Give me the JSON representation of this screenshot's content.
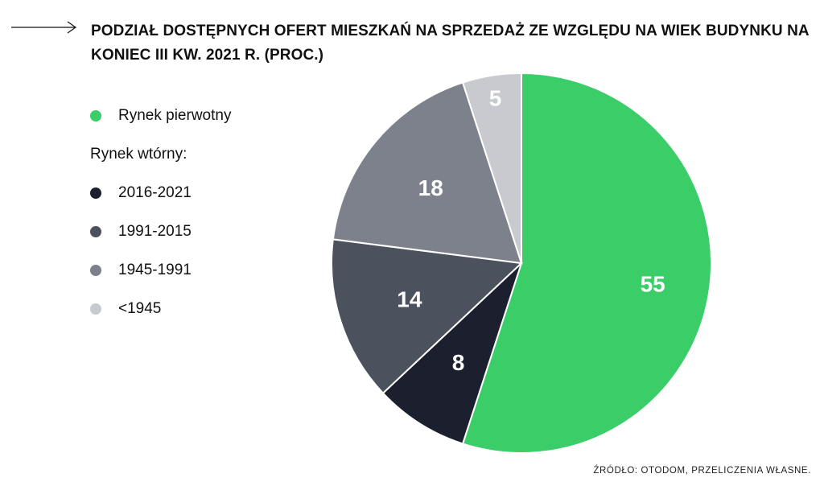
{
  "title": "PODZIAŁ DOSTĘPNYCH OFERT MIESZKAŃ NA SPRZEDAŻ ZE WZGLĘDU NA WIEK BUDYNKU NA KONIEC III KW. 2021 R. (PROC.)",
  "legend": {
    "primary_label": "Rynek pierwotny",
    "secondary_heading": "Rynek wtórny:",
    "secondary_items": [
      "2016-2021",
      "1991-2015",
      "1945-1991",
      "<1945"
    ]
  },
  "source": "ŹRÓDŁO: OTODOM, PRZELICZENIA WŁASNE.",
  "colors": {
    "primary": "#3acd68",
    "s2016": "#1b1f2e",
    "s1991": "#4c515e",
    "s1945": "#7c818b",
    "s_old": "#c8cacf"
  },
  "chart_data": {
    "type": "pie",
    "title": "PODZIAŁ DOSTĘPNYCH OFERT MIESZKAŃ NA SPRZEDAŻ ZE WZGLĘDU NA WIEK BUDYNKU NA KONIEC III KW. 2021 R. (PROC.)",
    "start": "12 o'clock, clockwise",
    "slices": [
      {
        "label": "Rynek pierwotny",
        "value": 55,
        "display": "55",
        "color": "#3acd68"
      },
      {
        "label": "2016-2021",
        "value": 8,
        "display": "8",
        "color": "#1b1f2e"
      },
      {
        "label": "1991-2015",
        "value": 14,
        "display": "14",
        "color": "#4c515e"
      },
      {
        "label": "1945-1991",
        "value": 18,
        "display": "18",
        "color": "#7c818b"
      },
      {
        "label": "<1945",
        "value": 5,
        "display": "5",
        "color": "#c8cacf"
      }
    ],
    "legend_position": "left"
  }
}
